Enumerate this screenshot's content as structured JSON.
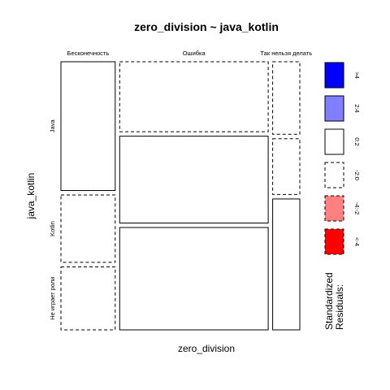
{
  "chart_data": {
    "type": "mosaic",
    "title": "zero_division ~ java_kotlin",
    "xlabel": "zero_division",
    "ylabel": "java_kotlin",
    "x_categories": [
      "Бесконечность",
      "Ошибка",
      "Так нельзя делать"
    ],
    "y_categories": [
      "Java",
      "Kotlin",
      "Не играет роли"
    ],
    "column_widths": [
      0.19,
      0.52,
      0.095
    ],
    "cells": [
      {
        "x": "Бесконечность",
        "y": "Java",
        "share": 0.497,
        "residual_class": "0:2"
      },
      {
        "x": "Бесконечность",
        "y": "Kotlin",
        "share": 0.26,
        "residual_class": "-2:0"
      },
      {
        "x": "Бесконечность",
        "y": "Не играет роли",
        "share": 0.243,
        "residual_class": "-2:0"
      },
      {
        "x": "Ошибка",
        "y": "Java",
        "share": 0.27,
        "residual_class": "-2:0"
      },
      {
        "x": "Ошибка",
        "y": "Kotlin",
        "share": 0.335,
        "residual_class": "0:2"
      },
      {
        "x": "Ошибка",
        "y": "Не играет роли",
        "share": 0.395,
        "residual_class": "0:2"
      },
      {
        "x": "Так нельзя делать",
        "y": "Java",
        "share": 0.28,
        "residual_class": "-2:0"
      },
      {
        "x": "Так нельзя делать",
        "y": "Kotlin",
        "share": 0.215,
        "residual_class": "-2:0"
      },
      {
        "x": "Так нельзя делать",
        "y": "Не играет роли",
        "share": 0.505,
        "residual_class": "0:2"
      }
    ],
    "legend": {
      "title": "Standardized\nResiduals:",
      "placement": "right",
      "entries": [
        {
          "label": ">4",
          "fill": "#0000FF",
          "dashed": false
        },
        {
          "label": "2:4",
          "fill": "#8080FF",
          "dashed": false
        },
        {
          "label": "0:2",
          "fill": "#FFFFFF",
          "dashed": false
        },
        {
          "label": "-2:0",
          "fill": "#FFFFFF",
          "dashed": true
        },
        {
          "label": "-4:-2",
          "fill": "#FF8080",
          "dashed": true
        },
        {
          "label": "<-4",
          "fill": "#FF0000",
          "dashed": true
        }
      ]
    }
  }
}
